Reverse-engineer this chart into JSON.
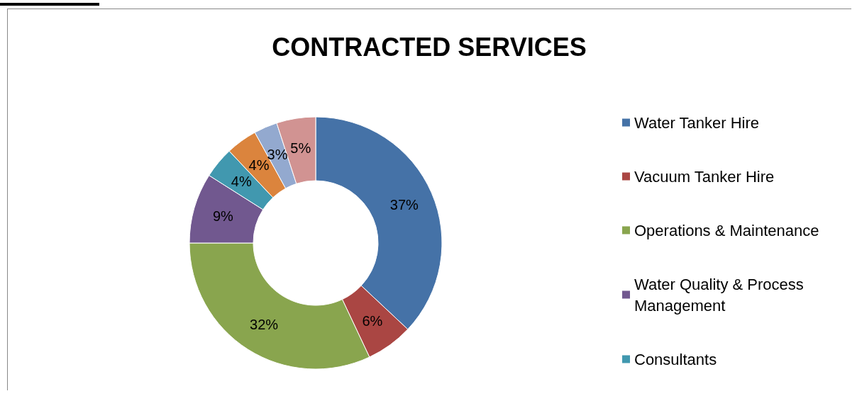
{
  "chart_data": {
    "type": "donut",
    "title": "CONTRACTED SERVICES",
    "categories": [
      "Water Tanker Hire",
      "Vacuum Tanker Hire",
      "Operations & Maintenance",
      "Water Quality & Process Management",
      "Consultants",
      null,
      null,
      null
    ],
    "values": [
      37,
      6,
      32,
      9,
      4,
      4,
      3,
      5
    ],
    "value_labels": [
      "37%",
      "6%",
      "32%",
      "9%",
      "4%",
      "4%",
      "3%",
      "5%"
    ],
    "colors": [
      "#4572a7",
      "#aa4643",
      "#89a54e",
      "#71588f",
      "#4198af",
      "#db843d",
      "#93a9cf",
      "#d19392"
    ],
    "legend": "right"
  }
}
